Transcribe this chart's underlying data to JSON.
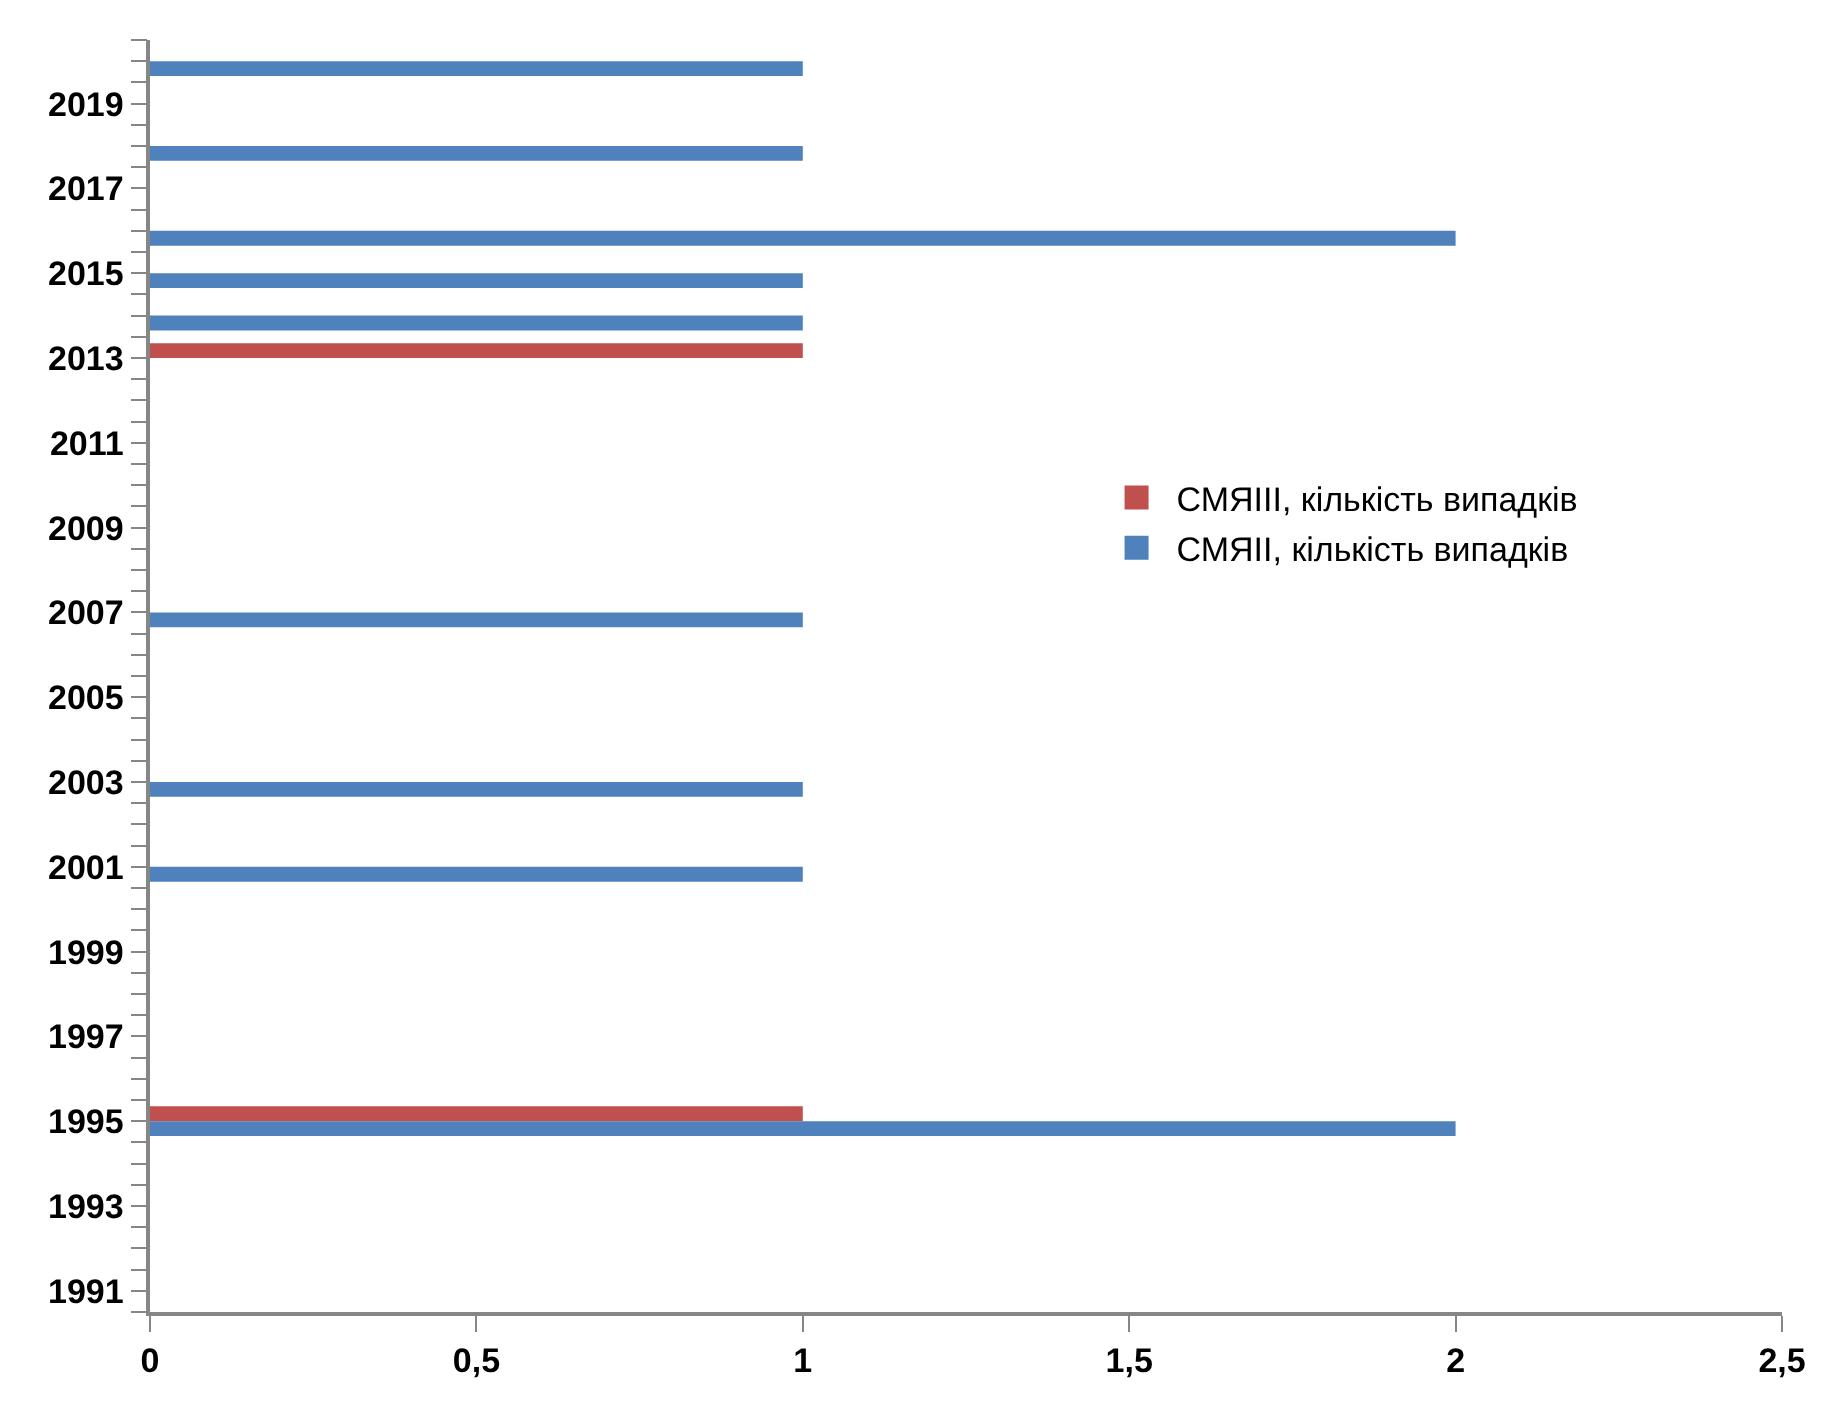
{
  "chart_data": {
    "type": "bar",
    "orientation": "horizontal",
    "categories": [
      null,
      "2019",
      null,
      "2017",
      null,
      "2015",
      null,
      "2013",
      null,
      "2011",
      null,
      "2009",
      null,
      "2007",
      null,
      "2005",
      null,
      "2003",
      null,
      "2001",
      null,
      "1999",
      null,
      "1997",
      null,
      "1995",
      null,
      "1993",
      null,
      "1991"
    ],
    "series": [
      {
        "name": "СМЯІІІ, кількість випадків",
        "color": "#c0504d",
        "values": [
          null,
          null,
          null,
          null,
          null,
          null,
          null,
          1,
          null,
          null,
          null,
          null,
          null,
          null,
          null,
          null,
          null,
          null,
          null,
          null,
          null,
          null,
          null,
          null,
          null,
          1,
          null,
          null,
          null,
          null
        ]
      },
      {
        "name": "СМЯІІ, кількість випадків",
        "color": "#4f81bd",
        "values": [
          1,
          null,
          1,
          null,
          2,
          1,
          1,
          null,
          null,
          null,
          null,
          null,
          null,
          1,
          null,
          null,
          null,
          1,
          null,
          1,
          null,
          null,
          null,
          null,
          null,
          2,
          null,
          null,
          null,
          null
        ]
      }
    ],
    "xlim": [
      0,
      2.5
    ],
    "xticks": [
      0,
      {
        "value": 0.5,
        "label": "0,5"
      },
      1,
      {
        "value": 1.5,
        "label": "1,5"
      },
      2,
      {
        "value": 2.5,
        "label": "2,5"
      }
    ],
    "legend": "right"
  }
}
